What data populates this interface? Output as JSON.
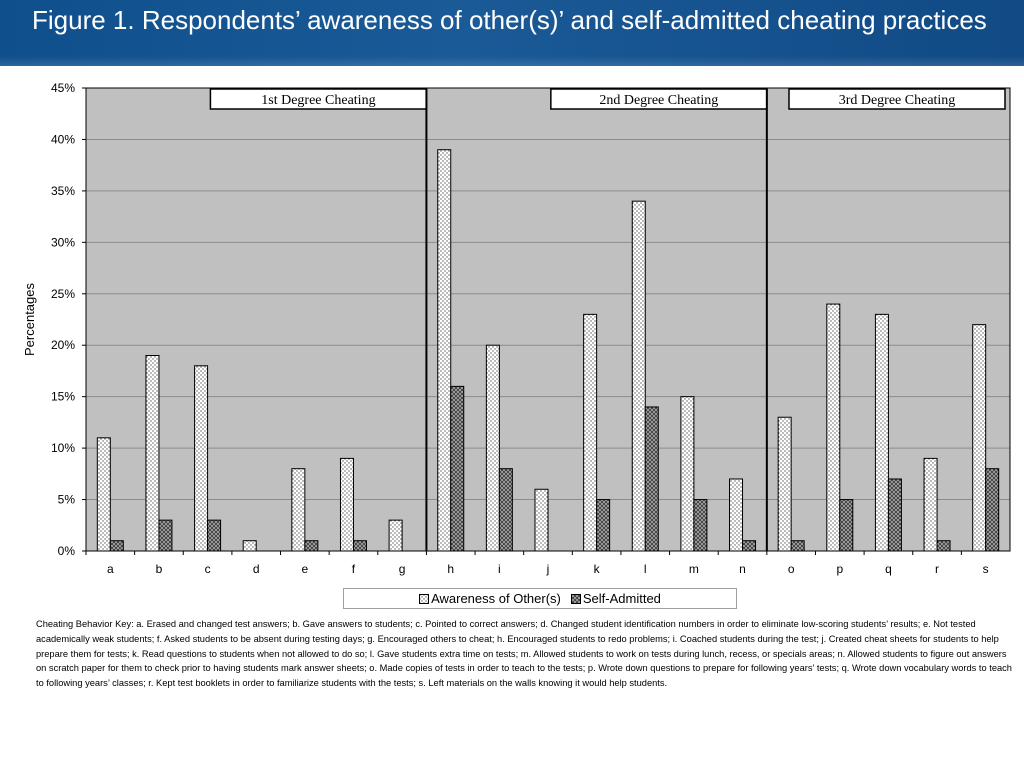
{
  "title": "Figure 1. Respondents’ awareness of other(s)’ and self-admitted cheating practices",
  "key_text": "Cheating Behavior Key: a. Erased and changed test answers; b. Gave answers to students; c. Pointed to correct answers; d. Changed student identification numbers in order to eliminate low-scoring students’ results; e. Not tested academically weak students; f. Asked students to be absent during testing days; g. Encouraged others to cheat; h. Encouraged students to redo problems; i. Coached students during the test; j. Created cheat sheets for students to help prepare them for tests; k. Read questions to students when not allowed to do so; l. Gave students extra time on tests; m. Allowed students to work on tests during lunch, recess, or specials areas; n. Allowed students to figure out answers on scratch paper for them to check prior to having students mark answer sheets; o. Made copies of tests in order to teach to the tests; p. Wrote down questions to prepare for following years’ tests; q. Wrote down vocabulary words to teach to following years’ classes; r. Kept test booklets in order to familiarize students with the tests; s. Left materials on the walls knowing it would help students.",
  "chart_data": {
    "type": "bar",
    "ylabel": "Percentages",
    "xlabel": "",
    "ylim": [
      0,
      45
    ],
    "ytick_step": 5,
    "ytick_suffix": "%",
    "grid": true,
    "categories": [
      "a",
      "b",
      "c",
      "d",
      "e",
      "f",
      "g",
      "h",
      "i",
      "j",
      "k",
      "l",
      "m",
      "n",
      "o",
      "p",
      "q",
      "r",
      "s"
    ],
    "series": [
      {
        "name": "Awareness of Other(s)",
        "values": [
          11,
          19,
          18,
          1,
          8,
          9,
          3,
          39,
          20,
          6,
          23,
          34,
          15,
          7,
          13,
          24,
          23,
          9,
          22
        ]
      },
      {
        "name": "Self-Admitted",
        "values": [
          1,
          3,
          3,
          0,
          1,
          1,
          0,
          16,
          8,
          0,
          5,
          14,
          5,
          1,
          1,
          5,
          7,
          1,
          8
        ]
      }
    ],
    "groups": [
      {
        "label": "1st Degree Cheating",
        "start": 0,
        "end": 6
      },
      {
        "label": "2nd Degree Cheating",
        "start": 7,
        "end": 13
      },
      {
        "label": "3rd Degree Cheating",
        "start": 14,
        "end": 18
      }
    ],
    "legend_position": "bottom",
    "colors": {
      "plot_bg": "#c0c0c0",
      "grid": "#8c8c8c",
      "bar_fill": "#ffffff",
      "self_fill": "#555555"
    }
  }
}
